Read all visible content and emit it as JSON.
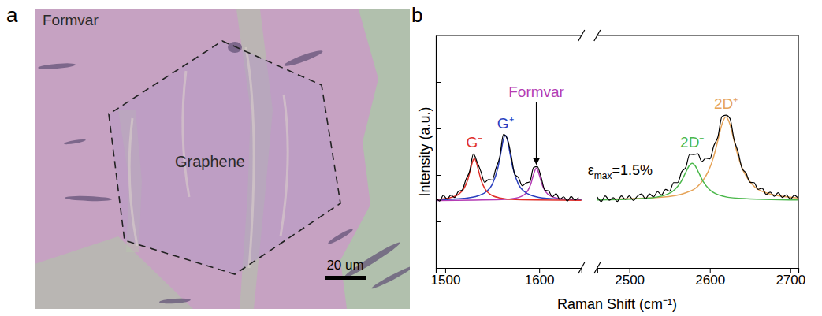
{
  "image_panel": {
    "panel_label": "a",
    "labels": [
      "Formvar",
      "Graphene"
    ],
    "scale_bar": "20 um"
  },
  "chart_data": {
    "panel_label": "b",
    "type": "line",
    "xlabel": "Raman Shift (cm⁻¹)",
    "ylabel": "Intensity (a.u.)",
    "xlim": [
      [
        1490,
        1645
      ],
      [
        2460,
        2710
      ]
    ],
    "xticks": [
      [
        1500,
        1600
      ],
      [
        2500,
        2600,
        2700
      ]
    ],
    "ylim": [
      0,
      100
    ],
    "yticks": [
      20,
      40,
      60,
      80
    ],
    "tick_labels": "x",
    "annotations": [
      {
        "symbol": "ε",
        "subscript": "max",
        "text": "=1.5%"
      }
    ],
    "series": [
      {
        "color": "#000000",
        "x": [
          1490,
          1494,
          1498,
          1502,
          1506,
          1510,
          1514,
          1518,
          1522,
          1526,
          1530,
          1534,
          1538,
          1542,
          1546,
          1550,
          1554,
          1558,
          1562,
          1566,
          1570,
          1574,
          1578,
          1582,
          1586,
          1590,
          1594,
          1598,
          1602,
          1606,
          1610,
          1614,
          1618,
          1622,
          1626,
          1630,
          1634,
          1638,
          1642,
          2460,
          2465,
          2470,
          2475,
          2480,
          2485,
          2490,
          2495,
          2500,
          2505,
          2510,
          2515,
          2520,
          2525,
          2530,
          2535,
          2540,
          2545,
          2550,
          2555,
          2560,
          2565,
          2570,
          2575,
          2580,
          2585,
          2590,
          2595,
          2600,
          2605,
          2610,
          2615,
          2620,
          2625,
          2630,
          2635,
          2640,
          2645,
          2650,
          2655,
          2660,
          2665,
          2670,
          2675,
          2680,
          2685,
          2690,
          2695,
          2700,
          2705,
          2710
        ],
        "values": [
          30.6,
          28.8,
          31.2,
          29.6,
          31.3,
          30.3,
          32.9,
          33.5,
          38.0,
          41.6,
          49.0,
          45.5,
          41.4,
          36.8,
          38.0,
          37.8,
          42.9,
          47.7,
          57.4,
          55.6,
          48.8,
          40.3,
          38.8,
          35.4,
          36.5,
          37.0,
          43.2,
          43.6,
          39.1,
          33.5,
          33.1,
          30.6,
          31.9,
          29.5,
          30.6,
          28.8,
          30.7,
          29.2,
          30.3,
          30.5,
          28.6,
          31.0,
          29.1,
          30.2,
          28.6,
          31.0,
          29.5,
          31.0,
          29.0,
          30.9,
          31.8,
          29.7,
          31.8,
          30.6,
          32.8,
          31.4,
          33.8,
          33.0,
          36.7,
          36.7,
          41.4,
          43.2,
          48.9,
          48.8,
          49.1,
          45.7,
          47.2,
          46.9,
          52.6,
          56.4,
          65.1,
          65.7,
          64.3,
          55.4,
          50.0,
          42.9,
          40.8,
          36.8,
          36.7,
          33.8,
          34.3,
          31.6,
          32.6,
          30.8,
          32.3,
          30.3,
          31.4,
          29.6,
          31.2,
          29.9
        ]
      },
      {
        "name": "G⁻",
        "color": "#e0302a",
        "x": [
          1490,
          1505,
          1515,
          1520,
          1524,
          1527,
          1529,
          1531,
          1533,
          1535,
          1538,
          1542,
          1547,
          1557,
          1575,
          1645
        ],
        "values": [
          29.5,
          30.2,
          31.9,
          34.2,
          38.0,
          42.6,
          45.6,
          47.0,
          45.6,
          42.6,
          38.0,
          34.2,
          31.9,
          30.2,
          29.4,
          29.1
        ]
      },
      {
        "name": "G⁺",
        "color": "#2a3fbf",
        "x": [
          1490,
          1520,
          1535,
          1544,
          1550,
          1556,
          1559,
          1562,
          1564,
          1566,
          1569,
          1572,
          1578,
          1584,
          1593,
          1608,
          1645
        ],
        "values": [
          29.3,
          29.9,
          31.0,
          32.9,
          35.9,
          43.0,
          49.1,
          55.4,
          57.0,
          55.4,
          49.1,
          43.0,
          35.9,
          32.9,
          31.0,
          29.9,
          29.3
        ]
      },
      {
        "name": "Formvar",
        "color": "#b43cb4",
        "x": [
          1490,
          1560,
          1575,
          1585,
          1591,
          1594,
          1597,
          1600,
          1603,
          1609,
          1619,
          1634,
          1645
        ],
        "values": [
          29.0,
          29.4,
          30.0,
          31.8,
          36.0,
          40.2,
          43.0,
          40.2,
          36.0,
          31.8,
          30.0,
          29.4,
          29.2
        ]
      },
      {
        "name": "2D⁻",
        "color": "#4cb84c",
        "x": [
          2460,
          2520,
          2545,
          2557,
          2564,
          2570,
          2574,
          2578,
          2582,
          2586,
          2592,
          2599,
          2611,
          2636,
          2710
        ],
        "values": [
          29.2,
          29.9,
          31.4,
          33.9,
          37.0,
          41.1,
          43.8,
          45.0,
          43.8,
          41.1,
          37.0,
          33.9,
          31.4,
          29.9,
          29.2
        ]
      },
      {
        "name": "2D⁺",
        "color": "#e6a45a",
        "x": [
          2460,
          2540,
          2570,
          2588,
          2598,
          2604,
          2610,
          2615,
          2620,
          2625,
          2630,
          2636,
          2642,
          2652,
          2670,
          2700,
          2710
        ],
        "values": [
          29.4,
          30.4,
          32.3,
          36.2,
          41.5,
          47.0,
          54.9,
          61.8,
          65.0,
          61.8,
          54.9,
          47.0,
          41.5,
          36.2,
          32.3,
          30.4,
          30.1
        ]
      }
    ]
  }
}
